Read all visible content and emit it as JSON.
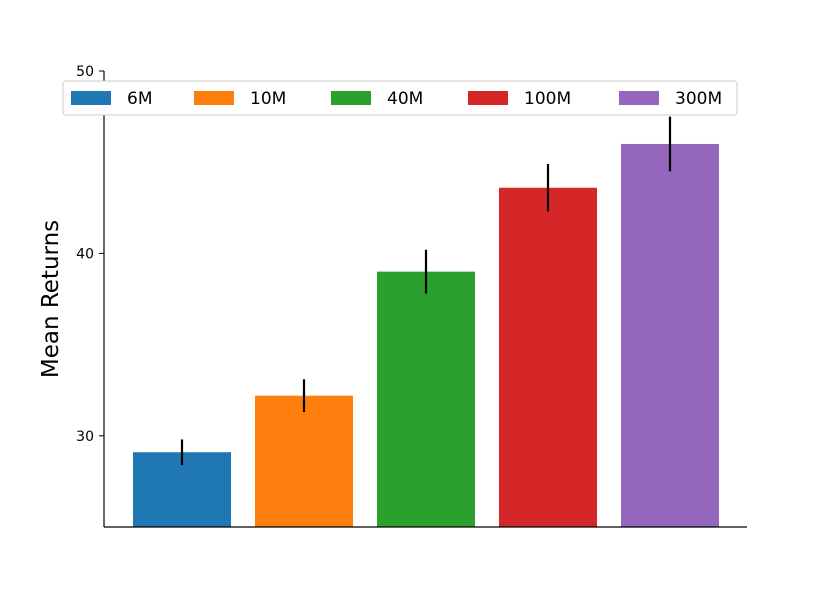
{
  "chart_data": {
    "type": "bar",
    "title": "",
    "xlabel": "",
    "ylabel": "Mean Returns",
    "ylim": [
      25,
      50
    ],
    "yticks": [
      30,
      40,
      50
    ],
    "grid": false,
    "legend_position": "top",
    "categories": [
      "6M",
      "10M",
      "40M",
      "100M",
      "300M"
    ],
    "series": [
      {
        "name": "6M",
        "value": 29.1,
        "error": 0.7,
        "color": "#1f77b4"
      },
      {
        "name": "10M",
        "value": 32.2,
        "error": 0.9,
        "color": "#ff7f0e"
      },
      {
        "name": "40M",
        "value": 39.0,
        "error": 1.2,
        "color": "#2ca02c"
      },
      {
        "name": "100M",
        "value": 43.6,
        "error": 1.3,
        "color": "#d62728"
      },
      {
        "name": "300M",
        "value": 46.0,
        "error": 1.5,
        "color": "#9467bd"
      }
    ]
  }
}
